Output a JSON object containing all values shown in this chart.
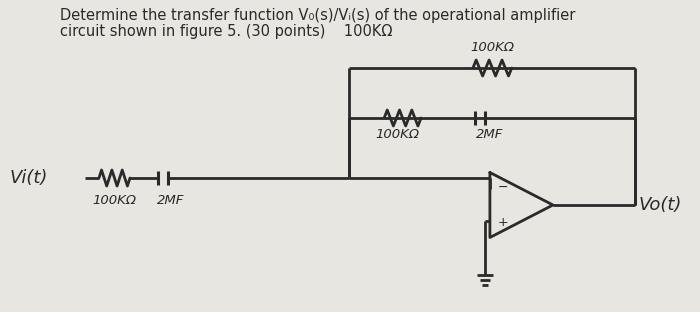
{
  "bg_color": "#e8e6e0",
  "line_color": "#2a2a2a",
  "text_color": "#2a2a2a",
  "title_line1": "Determine the transfer function V₀(s)/Vᵢ(s) of the operational amplifier",
  "title_line2": "circuit shown in figure 5. (30 points)    100KΩ",
  "vi_label": "Vi(t)",
  "vo_label": "Vo(t)",
  "input_r_label": "100KΩ",
  "input_c_label": "2MF",
  "fb_top_r_label": "100KΩ",
  "fb_inner_r_label": "100KΩ",
  "fb_inner_c_label": "2MF",
  "title_fontsize": 10.5,
  "circuit_lw": 2.0,
  "resistor_lw": 2.0
}
